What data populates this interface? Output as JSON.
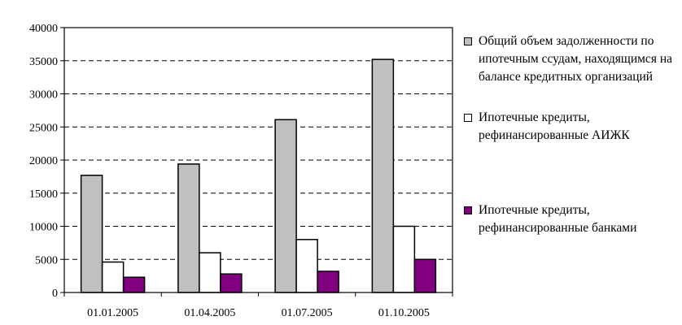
{
  "chart_data": {
    "type": "bar",
    "categories": [
      "01.01.2005",
      "01.04.2005",
      "01.07.2005",
      "01.10.2005"
    ],
    "series": [
      {
        "name": "Общий объем задолженности по ипотечным ссудам, находящимся на балансе кредитных организаций",
        "color": "#c0c0c0",
        "values": [
          17700,
          19400,
          26100,
          35200
        ]
      },
      {
        "name": "Ипотечные кредиты, рефинансированные АИЖК",
        "color": "#ffffff",
        "values": [
          4600,
          6000,
          8000,
          10000
        ]
      },
      {
        "name": "Ипотечные кредиты, рефинансированные банками",
        "color": "#800080",
        "values": [
          2300,
          2800,
          3200,
          5000
        ]
      }
    ],
    "ylim": [
      0,
      40000
    ],
    "yticks": [
      0,
      5000,
      10000,
      15000,
      20000,
      25000,
      30000,
      35000,
      40000
    ],
    "grid": true,
    "legend_position": "right"
  }
}
